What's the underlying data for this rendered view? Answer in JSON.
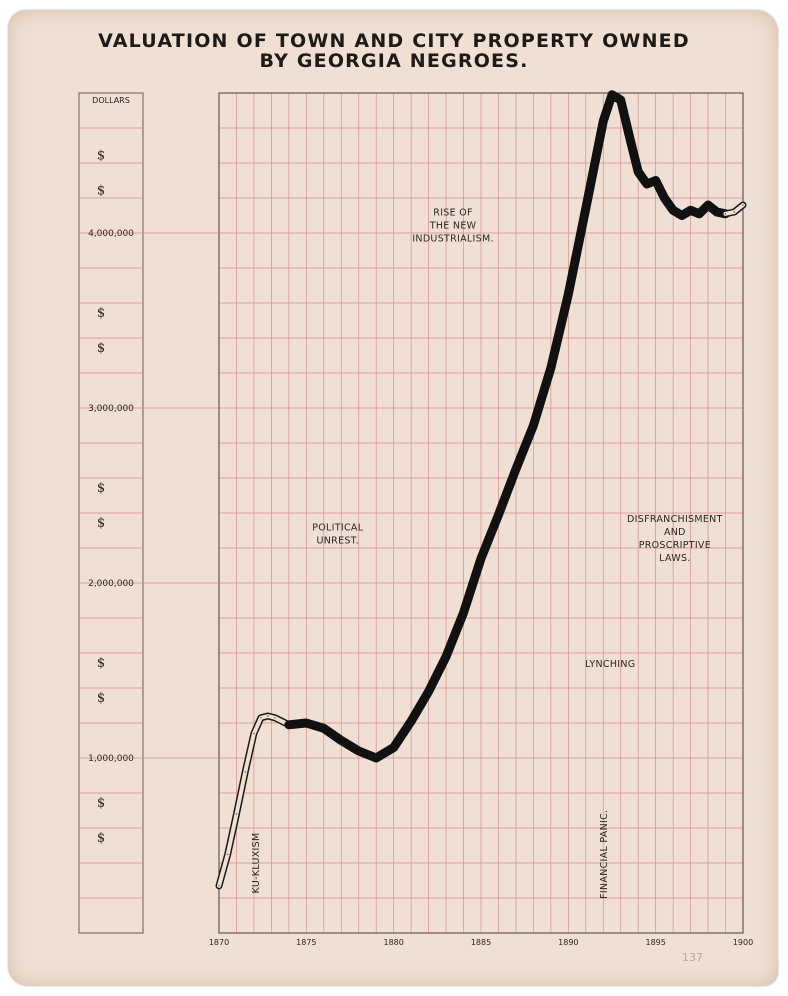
{
  "title": {
    "line1": "VALUATION OF TOWN AND CITY PROPERTY OWNED",
    "line2": "BY GEORGIA NEGROES."
  },
  "catalog_number": "137",
  "colors": {
    "paper": "#efe0d3",
    "grid": "#d98c8c",
    "ink": "#111111",
    "text": "#2a2522"
  },
  "chart_data": {
    "type": "line",
    "title": "VALUATION OF TOWN AND CITY PROPERTY OWNED BY GEORGIA NEGROES.",
    "ylabel": "DOLLARS",
    "xlim": [
      1870,
      1900
    ],
    "ylim": [
      0,
      4800000
    ],
    "grid": true,
    "x_ticks": [
      {
        "value": 1870,
        "label": "1870"
      },
      {
        "value": 1875,
        "label": "1875"
      },
      {
        "value": 1880,
        "label": "1880"
      },
      {
        "value": 1885,
        "label": "1885"
      },
      {
        "value": 1890,
        "label": "1890"
      },
      {
        "value": 1895,
        "label": "1895"
      },
      {
        "value": 1900,
        "label": "1900"
      }
    ],
    "y_ticks": [
      {
        "value": 1000000,
        "label": "1,000,000"
      },
      {
        "value": 2000000,
        "label": "2,000,000"
      },
      {
        "value": 3000000,
        "label": "3,000,000"
      },
      {
        "value": 4000000,
        "label": "4,000,000"
      }
    ],
    "dollar_sign": "$",
    "dollar_sign_levels": [
      4450000,
      4250000,
      3550000,
      3350000,
      2550000,
      2350000,
      1550000,
      1350000,
      750000,
      550000
    ],
    "series": [
      {
        "style": "outline",
        "x": [
          1870,
          1870.5,
          1871,
          1871.5,
          1872,
          1872.4,
          1872.8,
          1873.2,
          1874
        ],
        "y": [
          270000,
          450000,
          680000,
          920000,
          1140000,
          1230000,
          1240000,
          1230000,
          1190000
        ]
      },
      {
        "style": "solid",
        "x": [
          1874,
          1875,
          1876,
          1877,
          1878,
          1879,
          1880,
          1881,
          1882,
          1883,
          1884,
          1885,
          1886,
          1887,
          1888,
          1889,
          1890,
          1891,
          1892,
          1892.5,
          1893,
          1893.5,
          1894,
          1894.5,
          1895,
          1895.5,
          1896,
          1896.5,
          1897,
          1897.5,
          1898,
          1898.5,
          1899
        ],
        "y": [
          1190000,
          1200000,
          1170000,
          1100000,
          1040000,
          1000000,
          1060000,
          1210000,
          1380000,
          1580000,
          1830000,
          2140000,
          2390000,
          2650000,
          2900000,
          3230000,
          3650000,
          4140000,
          4640000,
          4790000,
          4760000,
          4550000,
          4350000,
          4280000,
          4300000,
          4200000,
          4130000,
          4100000,
          4130000,
          4110000,
          4160000,
          4120000,
          4110000
        ]
      },
      {
        "style": "outline",
        "x": [
          1899,
          1899.5,
          1900
        ],
        "y": [
          4110000,
          4120000,
          4160000
        ]
      }
    ],
    "annotations": [
      {
        "lines": [
          "KU-KLUXISM"
        ],
        "x": 1872.3,
        "y": 400000,
        "rotate": -90
      },
      {
        "lines": [
          "POLITICAL",
          "UNREST."
        ],
        "x": 1876.8,
        "y": 2300000
      },
      {
        "lines": [
          "RISE OF",
          "THE NEW",
          "INDUSTRIALISM."
        ],
        "x": 1883.4,
        "y": 4100000
      },
      {
        "lines": [
          "DISFRANCHISMENT",
          "AND",
          "PROSCRIPTIVE",
          "LAWS."
        ],
        "x": 1896.1,
        "y": 2350000
      },
      {
        "lines": [
          "LYNCHING"
        ],
        "x": 1892.4,
        "y": 1520000
      },
      {
        "lines": [
          "FINANCIAL PANIC."
        ],
        "x": 1892.2,
        "y": 450000,
        "rotate": -90
      }
    ]
  }
}
